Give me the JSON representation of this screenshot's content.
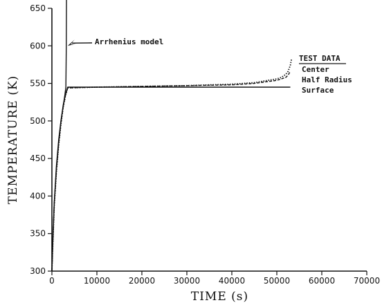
{
  "chart_data": {
    "type": "line",
    "xlabel": "TIME (s)",
    "ylabel": "TEMPERATURE (K)",
    "xlim": [
      0,
      70000
    ],
    "ylim": [
      300,
      650
    ],
    "xticks": [
      0,
      10000,
      20000,
      30000,
      40000,
      50000,
      60000,
      70000
    ],
    "yticks": [
      300,
      350,
      400,
      450,
      500,
      550,
      600,
      650
    ],
    "legend": {
      "title": "TEST DATA",
      "placement": "right",
      "entries": [
        "Center",
        "Half Radius",
        "Surface"
      ]
    },
    "annotations": [
      {
        "text": "Arrhenius model",
        "points_to": {
          "x": 3200,
          "y": 600
        }
      }
    ],
    "series": [
      {
        "name": "Arrhenius model",
        "style": "solid",
        "x": [
          0,
          200,
          500,
          1000,
          1500,
          2000,
          2500,
          2900,
          3100,
          3200,
          3250
        ],
        "y": [
          300,
          340,
          390,
          440,
          475,
          500,
          520,
          535,
          545,
          600,
          668
        ]
      },
      {
        "name": "Center",
        "style": "dotted",
        "x": [
          0,
          200,
          500,
          1000,
          1500,
          2000,
          2500,
          3000,
          3500,
          10000,
          20000,
          30000,
          40000,
          45000,
          50000,
          51000,
          52000,
          52500,
          53000,
          53300
        ],
        "y": [
          300,
          335,
          385,
          432,
          468,
          495,
          518,
          533,
          544,
          545,
          546,
          547,
          549,
          551,
          556,
          558,
          562,
          566,
          574,
          583
        ]
      },
      {
        "name": "Half Radius",
        "style": "dashed",
        "x": [
          0,
          200,
          500,
          1000,
          1500,
          2000,
          2500,
          3000,
          3500,
          10000,
          20000,
          30000,
          40000,
          45000,
          50000,
          51000,
          52000,
          52500,
          53000
        ],
        "y": [
          300,
          337,
          387,
          434,
          470,
          497,
          519,
          534,
          544,
          545,
          546,
          547,
          548,
          550,
          554,
          556,
          558,
          561,
          566
        ]
      },
      {
        "name": "Surface",
        "style": "solid",
        "x": [
          0,
          200,
          500,
          1000,
          1500,
          2000,
          2500,
          3000,
          3500,
          10000,
          20000,
          30000,
          40000,
          50000,
          53000
        ],
        "y": [
          300,
          340,
          390,
          437,
          472,
          499,
          521,
          535,
          545,
          545,
          545,
          545,
          545,
          545,
          545
        ]
      }
    ]
  }
}
